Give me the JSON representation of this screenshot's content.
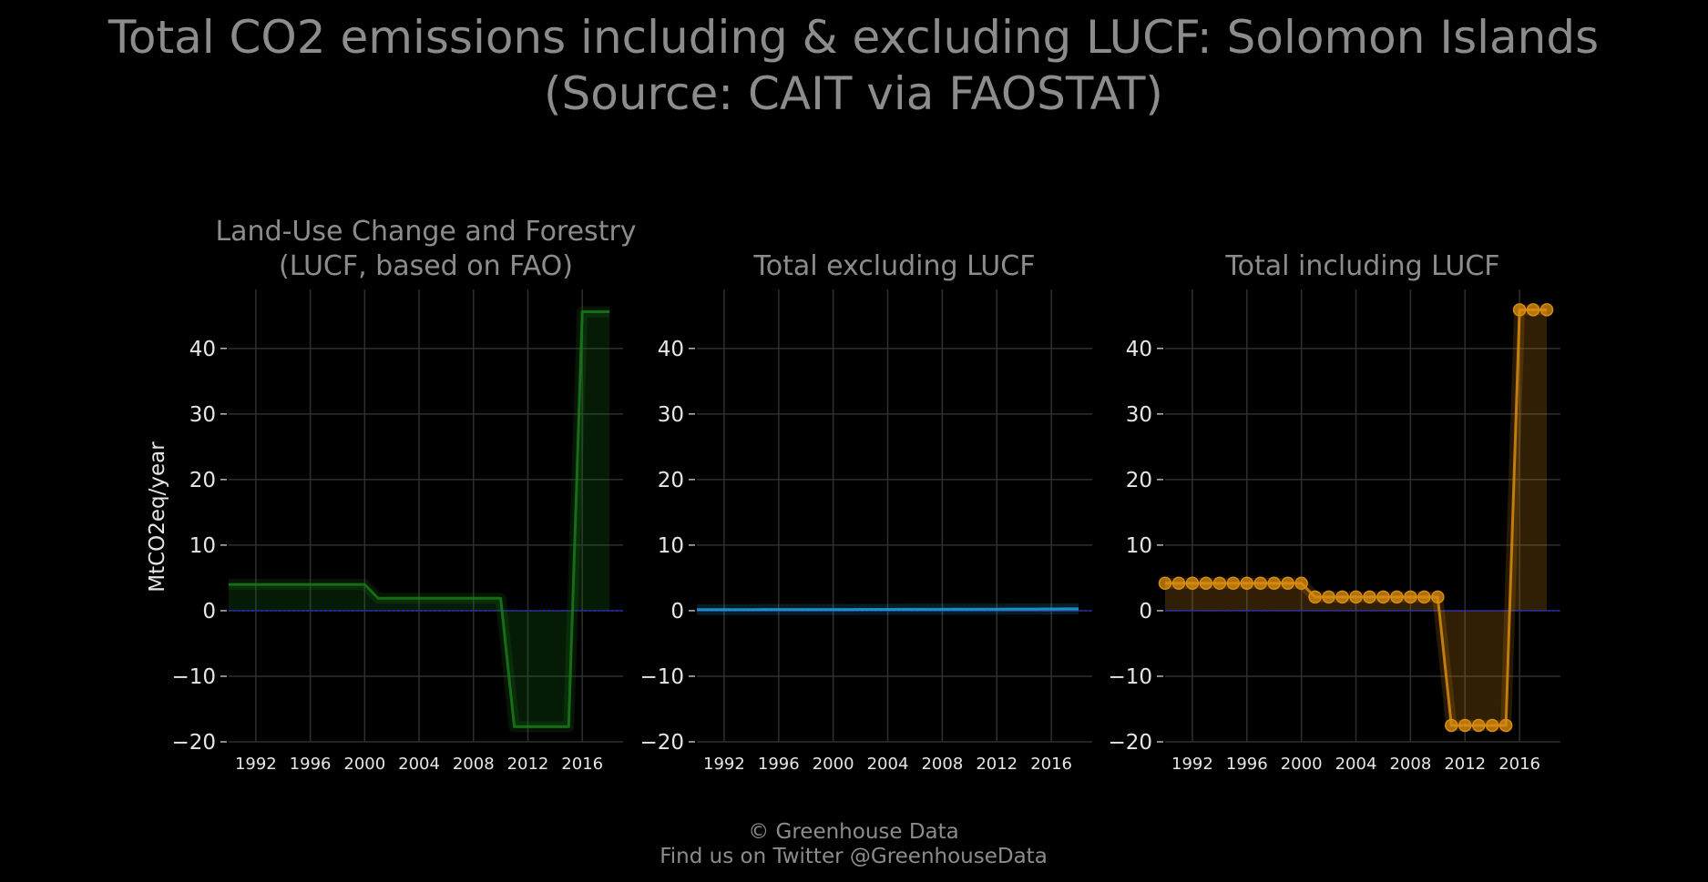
{
  "figure": {
    "title_lines": [
      "Total CO2 emissions including & excluding LUCF: Solomon Islands",
      "(Source: CAIT via FAOSTAT)"
    ],
    "footer_lines": [
      "© Greenhouse Data",
      "Find us on Twitter @GreenhouseData"
    ],
    "ylabel": "MtCO2eq/year",
    "background": "#000000",
    "zero_line_color": "#2222cc"
  },
  "chart_data": [
    {
      "type": "area",
      "title_lines": [
        "Land-Use Change and Forestry",
        "(LUCF, based on FAO)"
      ],
      "color": "#1a7a1a",
      "markers": false,
      "xlim": [
        1990,
        2019
      ],
      "ylim": [
        -20,
        49
      ],
      "grid": true,
      "xticks": [
        1992,
        1996,
        2000,
        2004,
        2008,
        2012,
        2016
      ],
      "xtick_labels": [
        "1992",
        "1996",
        "2000",
        "2004",
        "2008",
        "2012",
        "2016"
      ],
      "yticks": [
        -20,
        -10,
        0,
        10,
        20,
        30,
        40
      ],
      "ytick_labels": [
        "−20",
        "−10",
        "0",
        "10",
        "20",
        "30",
        "40"
      ],
      "x": [
        1990,
        1991,
        1992,
        1993,
        1994,
        1995,
        1996,
        1997,
        1998,
        1999,
        2000,
        2001,
        2002,
        2003,
        2004,
        2005,
        2006,
        2007,
        2008,
        2009,
        2010,
        2011,
        2012,
        2013,
        2014,
        2015,
        2016,
        2017,
        2018
      ],
      "values": [
        4,
        4,
        4,
        4,
        4,
        4,
        4,
        4,
        4,
        4,
        4,
        1.9,
        1.9,
        1.9,
        1.9,
        1.9,
        1.9,
        1.9,
        1.9,
        1.9,
        1.9,
        -17.7,
        -17.7,
        -17.7,
        -17.7,
        -17.7,
        45.6,
        45.6,
        45.6
      ]
    },
    {
      "type": "area",
      "title_lines": [
        "Total excluding LUCF"
      ],
      "color": "#1f9fd6",
      "markers": false,
      "xlim": [
        1990,
        2019
      ],
      "ylim": [
        -20,
        49
      ],
      "grid": true,
      "xticks": [
        1992,
        1996,
        2000,
        2004,
        2008,
        2012,
        2016
      ],
      "xtick_labels": [
        "1992",
        "1996",
        "2000",
        "2004",
        "2008",
        "2012",
        "2016"
      ],
      "yticks": [
        -20,
        -10,
        0,
        10,
        20,
        30,
        40
      ],
      "ytick_labels": [
        "−20",
        "−10",
        "0",
        "10",
        "20",
        "30",
        "40"
      ],
      "x": [
        1990,
        1991,
        1992,
        1993,
        1994,
        1995,
        1996,
        1997,
        1998,
        1999,
        2000,
        2001,
        2002,
        2003,
        2004,
        2005,
        2006,
        2007,
        2008,
        2009,
        2010,
        2011,
        2012,
        2013,
        2014,
        2015,
        2016,
        2017,
        2018
      ],
      "values": [
        0.16,
        0.16,
        0.17,
        0.17,
        0.17,
        0.18,
        0.18,
        0.18,
        0.18,
        0.19,
        0.19,
        0.19,
        0.2,
        0.2,
        0.2,
        0.21,
        0.21,
        0.22,
        0.22,
        0.23,
        0.23,
        0.24,
        0.24,
        0.25,
        0.25,
        0.26,
        0.27,
        0.28,
        0.29
      ]
    },
    {
      "type": "area",
      "title_lines": [
        "Total including LUCF"
      ],
      "color": "#d98c10",
      "markers": true,
      "xlim": [
        1990,
        2019
      ],
      "ylim": [
        -20,
        49
      ],
      "grid": true,
      "xticks": [
        1992,
        1996,
        2000,
        2004,
        2008,
        2012,
        2016
      ],
      "xtick_labels": [
        "1992",
        "1996",
        "2000",
        "2004",
        "2008",
        "2012",
        "2016"
      ],
      "yticks": [
        -20,
        -10,
        0,
        10,
        20,
        30,
        40
      ],
      "ytick_labels": [
        "−20",
        "−10",
        "0",
        "10",
        "20",
        "30",
        "40"
      ],
      "x": [
        1990,
        1991,
        1992,
        1993,
        1994,
        1995,
        1996,
        1997,
        1998,
        1999,
        2000,
        2001,
        2002,
        2003,
        2004,
        2005,
        2006,
        2007,
        2008,
        2009,
        2010,
        2011,
        2012,
        2013,
        2014,
        2015,
        2016,
        2017,
        2018
      ],
      "values": [
        4.2,
        4.2,
        4.2,
        4.2,
        4.2,
        4.2,
        4.2,
        4.2,
        4.2,
        4.2,
        4.2,
        2.1,
        2.1,
        2.1,
        2.1,
        2.1,
        2.1,
        2.1,
        2.1,
        2.1,
        2.1,
        -17.5,
        -17.5,
        -17.5,
        -17.5,
        -17.5,
        45.9,
        45.9,
        45.9
      ]
    }
  ]
}
